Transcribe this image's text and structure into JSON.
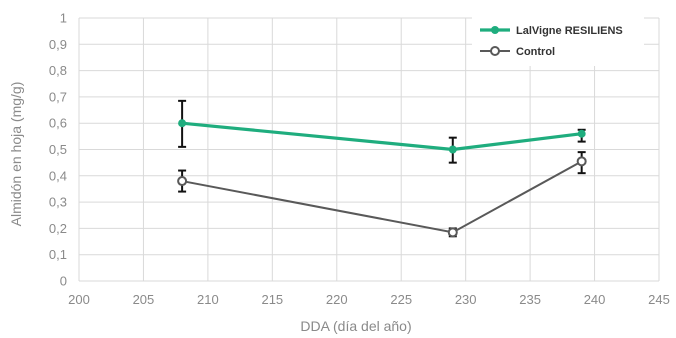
{
  "chart_data": {
    "type": "line",
    "xlabel": "DDA (día del año)",
    "ylabel": "Almidón en hoja (mg/g)",
    "xlim": [
      200,
      245
    ],
    "ylim": [
      0,
      1
    ],
    "x_ticks": [
      "200",
      "205",
      "210",
      "215",
      "220",
      "225",
      "230",
      "235",
      "240",
      "245"
    ],
    "y_ticks": [
      "0",
      "0,1",
      "0,2",
      "0,3",
      "0,4",
      "0,5",
      "0,6",
      "0,7",
      "0,8",
      "0,9",
      "1"
    ],
    "grid": true,
    "legend_position": "top-right",
    "series": [
      {
        "name": "LalVigne RESILIENS",
        "color": "#1fad7e",
        "marker": "filled-circle",
        "x": [
          208,
          229,
          239
        ],
        "y": [
          0.6,
          0.5,
          0.56
        ],
        "error_low": [
          0.51,
          0.45,
          0.53
        ],
        "error_high": [
          0.685,
          0.545,
          0.575
        ]
      },
      {
        "name": "Control",
        "color": "#595959",
        "marker": "open-circle",
        "x": [
          208,
          229,
          239
        ],
        "y": [
          0.38,
          0.185,
          0.455
        ],
        "error_low": [
          0.34,
          0.17,
          0.41
        ],
        "error_high": [
          0.42,
          0.2,
          0.49
        ]
      }
    ]
  }
}
